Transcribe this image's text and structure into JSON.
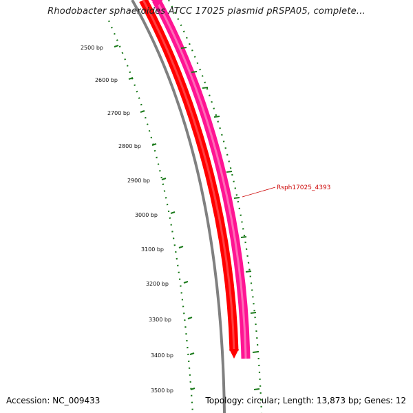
{
  "title": "Rhodobacter sphaeroides ATCC 17025 plasmid pRSPA05, complete...",
  "footer": {
    "accession": "Accession: NC_009433",
    "summary": "Topology: circular; Length: 13,873 bp; Genes: 12"
  },
  "scale_ticks": [
    "2500 bp",
    "2600 bp",
    "2700 bp",
    "2800 bp",
    "2900 bp",
    "3000 bp",
    "3100 bp",
    "3200 bp",
    "3300 bp",
    "3400 bp",
    "3500 bp"
  ],
  "gene_label": "Rsph17025_4393",
  "colors": {
    "backbone": "#808080",
    "forward_gene": "#ff0000",
    "reverse_gene": "#ff1493",
    "scale": "#1a7a1a",
    "label": "#cc0000"
  }
}
